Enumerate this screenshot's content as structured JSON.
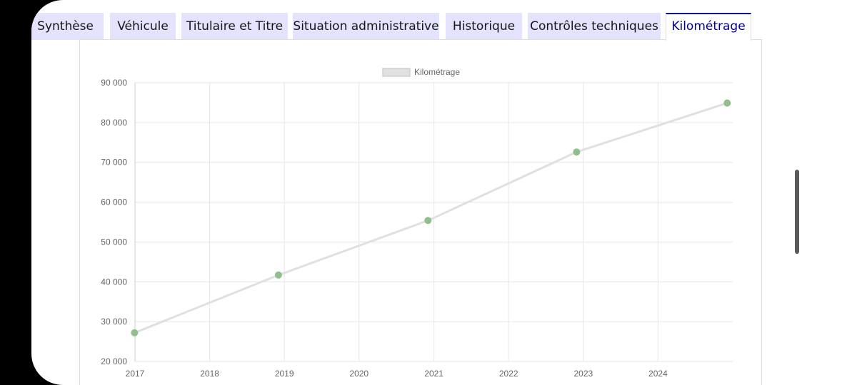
{
  "tabs": [
    {
      "label": "Synthèse",
      "active": false
    },
    {
      "label": "Véhicule",
      "active": false
    },
    {
      "label": "Titulaire et Titre",
      "active": false
    },
    {
      "label": "Situation administrative",
      "active": false
    },
    {
      "label": "Historique",
      "active": false
    },
    {
      "label": "Contrôles techniques",
      "active": false
    },
    {
      "label": "Kilométrage",
      "active": true
    }
  ],
  "colors": {
    "tab_bg": "#e3e3fd",
    "tab_active_text": "#000091",
    "series_line": "#e0e0e0",
    "point": "#8fbf8c",
    "grid": "#e6e6e6"
  },
  "chart_data": {
    "type": "line",
    "title": "",
    "xlabel": "",
    "ylabel": "",
    "legend": {
      "position": "top",
      "entries": [
        "Kilométrage"
      ]
    },
    "grid": true,
    "xlim": [
      "2017-01-01",
      "2024-12-31"
    ],
    "ylim": [
      20000,
      90000
    ],
    "x_ticks": [
      "2017",
      "2018",
      "2019",
      "2020",
      "2021",
      "2022",
      "2023",
      "2024"
    ],
    "y_ticks": [
      "20 000",
      "30 000",
      "40 000",
      "50 000",
      "60 000",
      "70 000",
      "80 000",
      "90 000"
    ],
    "series": [
      {
        "name": "Kilométrage",
        "x": [
          "2016-12-30",
          "2018-12-03",
          "2020-12-03",
          "2022-11-29",
          "2024-12-04"
        ],
        "y": [
          27200,
          41700,
          55400,
          72600,
          84900
        ]
      }
    ]
  },
  "system_nav": {
    "back_icon": "chevron-left-icon",
    "home_icon": "rounded-square-icon",
    "recents_icon": "three-bars-icon"
  }
}
